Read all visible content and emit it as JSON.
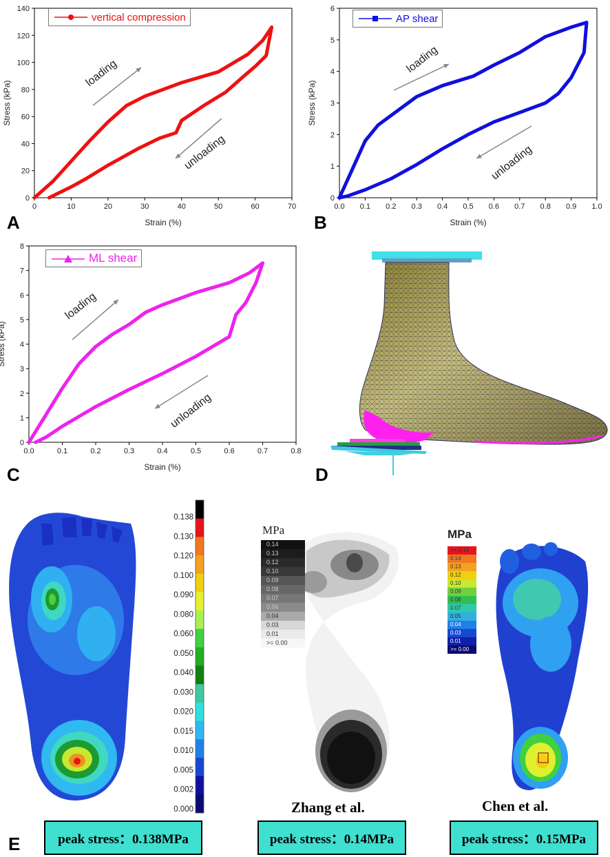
{
  "panels": {
    "A": {
      "label": "A"
    },
    "B": {
      "label": "B"
    },
    "C": {
      "label": "C"
    },
    "D": {
      "label": "D"
    },
    "E": {
      "label": "E"
    }
  },
  "chart_data": [
    {
      "type": "line",
      "legend": "vertical compression",
      "legend_position": "top-left",
      "color": "#ee1111",
      "xlabel": "Strain (%)",
      "ylabel": "Stress (kPa)",
      "xlim": [
        0,
        70
      ],
      "ylim": [
        0,
        140
      ],
      "xticks": [
        0,
        10,
        20,
        30,
        40,
        50,
        60,
        70
      ],
      "yticks": [
        0,
        20,
        40,
        60,
        80,
        100,
        120,
        140
      ],
      "annotations": [
        "loading",
        "unloading"
      ],
      "series": [
        {
          "name": "vertical compression",
          "segment": "loading",
          "x": [
            0,
            5,
            10,
            15,
            20,
            25,
            30,
            40,
            50,
            58,
            62,
            64.5
          ],
          "y": [
            0,
            12,
            27,
            42,
            56,
            68,
            75,
            85,
            93,
            106,
            116,
            126
          ]
        },
        {
          "name": "vertical compression",
          "segment": "unloading",
          "x": [
            64.5,
            63,
            60,
            57,
            52,
            46,
            40,
            38.5,
            34,
            28,
            20,
            14,
            10,
            7,
            4
          ],
          "y": [
            126,
            105,
            97,
            90,
            78,
            68,
            57,
            48,
            44,
            36,
            24,
            14,
            8,
            4,
            0
          ]
        }
      ]
    },
    {
      "type": "line",
      "legend": "AP shear",
      "legend_position": "top-left",
      "color": "#1010dd",
      "xlabel": "Strain (%)",
      "ylabel": "Stress (kPa)",
      "xlim": [
        0,
        1.0
      ],
      "ylim": [
        0,
        6
      ],
      "xticks": [
        "0.0",
        "0.1",
        "0.2",
        "0.3",
        "0.4",
        "0.5",
        "0.6",
        "0.7",
        "0.8",
        "0.9",
        "1.0"
      ],
      "yticks": [
        0,
        1,
        2,
        3,
        4,
        5,
        6
      ],
      "annotations": [
        "loading",
        "unloading"
      ],
      "series": [
        {
          "name": "AP shear",
          "segment": "loading",
          "x": [
            0,
            0.05,
            0.1,
            0.15,
            0.2,
            0.3,
            0.4,
            0.5,
            0.52,
            0.6,
            0.7,
            0.8,
            0.9,
            0.96
          ],
          "y": [
            0,
            0.9,
            1.8,
            2.3,
            2.6,
            3.2,
            3.55,
            3.8,
            3.85,
            4.2,
            4.6,
            5.1,
            5.4,
            5.55
          ]
        },
        {
          "name": "AP shear",
          "segment": "unloading",
          "x": [
            0.96,
            0.95,
            0.9,
            0.85,
            0.8,
            0.7,
            0.6,
            0.5,
            0.4,
            0.3,
            0.2,
            0.1,
            0.03,
            0
          ],
          "y": [
            5.55,
            4.6,
            3.8,
            3.3,
            3.0,
            2.7,
            2.4,
            2.0,
            1.55,
            1.05,
            0.6,
            0.25,
            0.05,
            0
          ]
        }
      ]
    },
    {
      "type": "line",
      "legend": "ML shear",
      "legend_position": "top-left",
      "color": "#ee22ee",
      "xlabel": "Strain (%)",
      "ylabel": "Stress (kPa)",
      "xlim": [
        0,
        0.8
      ],
      "ylim": [
        0,
        8
      ],
      "xticks": [
        "0.0",
        "0.1",
        "0.2",
        "0.3",
        "0.4",
        "0.5",
        "0.6",
        "0.7",
        "0.8"
      ],
      "yticks": [
        0,
        1,
        2,
        3,
        4,
        5,
        6,
        7,
        8
      ],
      "annotations": [
        "loading",
        "unloading"
      ],
      "series": [
        {
          "name": "ML shear",
          "segment": "loading",
          "x": [
            0,
            0.05,
            0.1,
            0.15,
            0.2,
            0.25,
            0.3,
            0.35,
            0.4,
            0.5,
            0.6,
            0.66,
            0.7
          ],
          "y": [
            0,
            1.1,
            2.2,
            3.2,
            3.9,
            4.4,
            4.8,
            5.3,
            5.6,
            6.1,
            6.5,
            6.9,
            7.3
          ]
        },
        {
          "name": "ML shear",
          "segment": "unloading",
          "x": [
            0.7,
            0.68,
            0.65,
            0.62,
            0.6,
            0.5,
            0.4,
            0.3,
            0.2,
            0.1,
            0.05,
            0.02
          ],
          "y": [
            7.3,
            6.5,
            5.7,
            5.2,
            4.3,
            3.5,
            2.8,
            2.15,
            1.45,
            0.65,
            0.2,
            0
          ]
        }
      ]
    }
  ],
  "colorbar": {
    "labels": [
      "0.138",
      "0.130",
      "0.120",
      "0.100",
      "0.090",
      "0.080",
      "0.060",
      "0.050",
      "0.040",
      "0.030",
      "0.020",
      "0.015",
      "0.010",
      "0.005",
      "0.002",
      "0.000"
    ],
    "colors": [
      "#000000",
      "#e8141c",
      "#f07820",
      "#f4a020",
      "#f0d010",
      "#e6f030",
      "#a8f050",
      "#40d040",
      "#20b020",
      "#108010",
      "#40c8a0",
      "#30e0e0",
      "#30b8f0",
      "#2080e8",
      "#1848d0",
      "#1010a0",
      "#0a0a70"
    ]
  },
  "zhang": {
    "unit": "MPa",
    "legend": [
      "0.14",
      "0.13",
      "0.12",
      "0.10",
      "0.09",
      "0.08",
      "0.07",
      "0.06",
      "0.04",
      "0.03",
      "0.01",
      ">= 0.00"
    ],
    "caption": "Zhang et al."
  },
  "chen": {
    "unit": "MPa",
    "legend": [
      ">= 0.15",
      "0.14",
      "0.13",
      "0.12",
      "0.10",
      "0.09",
      "0.08",
      "0.07",
      "0.05",
      "0.04",
      "0.03",
      "0.01",
      ">= 0.00"
    ],
    "caption": "Chen et al."
  },
  "peaks": {
    "ours": "peak stress：0.138MPa",
    "zhang": "peak stress：0.14MPa",
    "chen": "peak stress：0.15MPa"
  }
}
